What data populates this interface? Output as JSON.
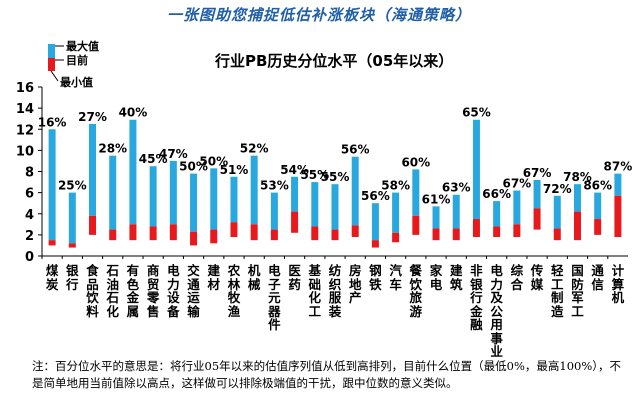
{
  "header": {
    "top_title": "一张图助您捕捉低估补涨板块（海通策略）",
    "chart_title": "行业PB历史分位水平（05年以来）"
  },
  "colors": {
    "max_bar": "#29a8e0",
    "min_bar": "#e8191c",
    "title_blue": "#1f5fa8"
  },
  "chart_data": {
    "type": "bar",
    "title": "行业PB历史分位水平（05年以来）",
    "xlabel": "",
    "ylabel": "",
    "ylim": [
      0,
      16
    ],
    "yticks": [
      0,
      2,
      4,
      6,
      8,
      10,
      12,
      14,
      16
    ],
    "legend": {
      "placement": "top-left",
      "entries": [
        "最大值",
        "目前",
        "最小值"
      ]
    },
    "categories": [
      "煤炭",
      "银行",
      "食品饮料",
      "石油石化",
      "有色金属",
      "商贸零售",
      "电力设备",
      "交通运输",
      "建材",
      "农林牧渔",
      "机械",
      "电子元器件",
      "医药",
      "基础化工",
      "纺织服装",
      "房地产",
      "钢铁",
      "汽车",
      "餐饮旅游",
      "家电",
      "建筑",
      "非银行金融",
      "电力及公用事业",
      "综合",
      "传媒",
      "轻工制造",
      "国防军工",
      "通信",
      "计算机"
    ],
    "series": [
      {
        "name": "最大值",
        "values": [
          12.0,
          6.0,
          12.5,
          9.5,
          12.9,
          8.5,
          9.0,
          7.8,
          8.3,
          7.5,
          9.5,
          6.0,
          7.5,
          7.0,
          6.8,
          9.4,
          5.0,
          6.0,
          8.2,
          4.7,
          5.8,
          12.9,
          5.2,
          6.2,
          7.2,
          5.7,
          6.8,
          6.0,
          7.8
        ]
      },
      {
        "name": "目前",
        "values": [
          1.5,
          1.2,
          3.8,
          2.5,
          3.0,
          2.8,
          3.0,
          2.3,
          2.5,
          3.2,
          3.0,
          2.5,
          4.2,
          2.8,
          2.5,
          2.9,
          1.5,
          2.2,
          3.8,
          2.6,
          2.6,
          3.5,
          2.8,
          3.0,
          4.5,
          2.6,
          4.2,
          3.5,
          5.7
        ]
      },
      {
        "name": "最小值",
        "values": [
          1.0,
          0.8,
          2.0,
          1.5,
          1.5,
          1.5,
          1.5,
          1.0,
          1.2,
          1.8,
          1.5,
          1.5,
          2.2,
          1.5,
          1.5,
          1.8,
          0.8,
          1.3,
          2.0,
          1.5,
          1.5,
          1.8,
          1.8,
          1.8,
          2.5,
          1.5,
          1.5,
          2.0,
          1.8
        ]
      }
    ],
    "percentile_labels": [
      "16%",
      "25%",
      "27%",
      "28%",
      "40%",
      "45%",
      "47%",
      "50%",
      "50%",
      "51%",
      "52%",
      "53%",
      "54%",
      "55%",
      "55%",
      "56%",
      "56%",
      "58%",
      "60%",
      "61%",
      "63%",
      "65%",
      "66%",
      "67%",
      "67%",
      "72%",
      "78%",
      "86%",
      "87%"
    ]
  },
  "footnote": {
    "text": "注：百分位水平的意思是：将行业05年以来的估值序列值从低到高排列，目前什么位置（最低0%，最高100%），不是简单地用当前值除以高点，这样做可以排除极端值的干扰，跟中位数的意义类似。"
  }
}
